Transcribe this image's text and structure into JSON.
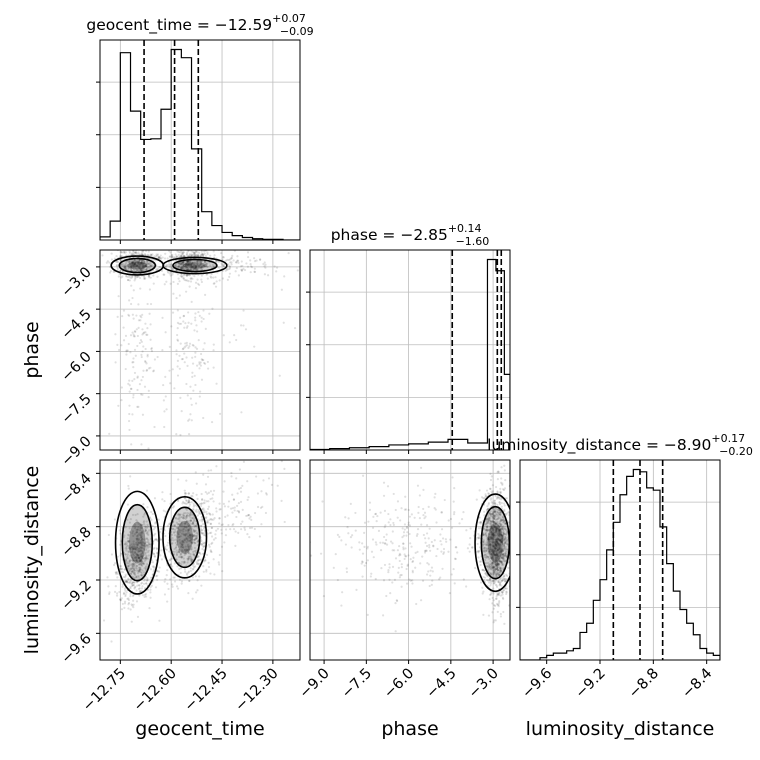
{
  "chart_data": {
    "type": "scatter",
    "parameters": [
      {
        "name": "geocent_time",
        "title_main": "geocent_time = −12.59",
        "err_plus": "+0.07",
        "err_minus": "−0.09",
        "median": -12.59,
        "q16": -12.68,
        "q84": -12.52,
        "range": [
          -12.81,
          -12.22
        ],
        "ticks": [
          -12.75,
          -12.6,
          -12.45,
          -12.3
        ],
        "tick_labels": [
          "−12.75",
          "−12.60",
          "−12.45",
          "−12.30"
        ],
        "hist_edges": [
          -12.81,
          -12.78,
          -12.75,
          -12.72,
          -12.69,
          -12.66,
          -12.63,
          -12.6,
          -12.57,
          -12.54,
          -12.51,
          -12.48,
          -12.45,
          -12.42,
          -12.39,
          -12.36,
          -12.33,
          -12.3,
          -12.27,
          -12.24,
          -12.21
        ],
        "hist_counts": [
          5,
          30,
          298,
          205,
          160,
          161,
          208,
          303,
          290,
          145,
          45,
          23,
          12,
          7,
          4,
          2,
          1,
          1,
          0,
          0
        ]
      },
      {
        "name": "phase",
        "title_main": "phase = −2.85",
        "err_plus": "+0.14",
        "err_minus": "−1.60",
        "median": -2.85,
        "q16": -4.45,
        "q84": -2.71,
        "range": [
          -9.5,
          -2.4
        ],
        "ticks": [
          -9.0,
          -7.5,
          -6.0,
          -4.5,
          -3.0
        ],
        "tick_labels": [
          "−9.0",
          "−7.5",
          "−6.0",
          "−4.5",
          "−3.0"
        ],
        "hist_edges": [
          -9.5,
          -8.8,
          -8.1,
          -7.4,
          -6.7,
          -6.0,
          -5.3,
          -4.6,
          -3.9,
          -3.2,
          -2.9,
          -2.6,
          -2.4
        ],
        "hist_counts": [
          2,
          5,
          8,
          12,
          18,
          22,
          28,
          38,
          25,
          680,
          640,
          270
        ]
      },
      {
        "name": "luminosity_distance",
        "title_main": "luminosity_distance = −8.90",
        "err_plus": "+0.17",
        "err_minus": "−0.20",
        "median": -8.9,
        "q16": -9.1,
        "q84": -8.73,
        "range": [
          -9.8,
          -8.3
        ],
        "ticks": [
          -9.6,
          -9.2,
          -8.8,
          -8.4
        ],
        "tick_labels": [
          "−9.6",
          "−9.2",
          "−8.8",
          "−8.4"
        ],
        "hist_edges": [
          -9.8,
          -9.75,
          -9.7,
          -9.65,
          -9.6,
          -9.55,
          -9.5,
          -9.45,
          -9.4,
          -9.35,
          -9.3,
          -9.25,
          -9.2,
          -9.15,
          -9.1,
          -9.05,
          -9.0,
          -8.95,
          -8.9,
          -8.85,
          -8.8,
          -8.75,
          -8.7,
          -8.65,
          -8.6,
          -8.55,
          -8.5,
          -8.45,
          -8.4,
          -8.35,
          -8.3
        ],
        "hist_counts": [
          0,
          0,
          0,
          1,
          2,
          3,
          3,
          4,
          5,
          12,
          16,
          26,
          35,
          48,
          60,
          72,
          80,
          83,
          82,
          75,
          74,
          58,
          42,
          30,
          22,
          16,
          11,
          5,
          3,
          2
        ]
      }
    ],
    "scatter_pairs": [
      {
        "x": "geocent_time",
        "y": "phase"
      },
      {
        "x": "geocent_time",
        "y": "luminosity_distance"
      },
      {
        "x": "phase",
        "y": "luminosity_distance"
      }
    ],
    "grid": true,
    "xlabels": [
      "geocent_time",
      "phase",
      "luminosity_distance"
    ],
    "ylabels": [
      "",
      "phase",
      "luminosity_distance"
    ]
  }
}
